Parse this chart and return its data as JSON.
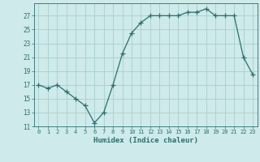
{
  "xlabel": "Humidex (Indice chaleur)",
  "x": [
    0,
    1,
    2,
    3,
    4,
    5,
    6,
    7,
    8,
    9,
    10,
    11,
    12,
    13,
    14,
    15,
    16,
    17,
    18,
    19,
    20,
    21,
    22,
    23
  ],
  "y": [
    17,
    16.5,
    17,
    16,
    15,
    14,
    11.5,
    13,
    17,
    21.5,
    24.5,
    26,
    27,
    27,
    27,
    27,
    27.5,
    27.5,
    28,
    27,
    27,
    27,
    21,
    18.5
  ],
  "line_color": "#2d6e6e",
  "marker": "+",
  "marker_size": 4,
  "bg_color": "#ceeaea",
  "grid_color": "#aacece",
  "tick_color": "#2d6e6e",
  "label_color": "#2d6e6e",
  "ylim": [
    11,
    28
  ],
  "yticks": [
    11,
    13,
    15,
    17,
    19,
    21,
    23,
    25,
    27
  ],
  "xticks": [
    0,
    1,
    2,
    3,
    4,
    5,
    6,
    7,
    8,
    9,
    10,
    11,
    12,
    13,
    14,
    15,
    16,
    17,
    18,
    19,
    20,
    21,
    22,
    23
  ]
}
